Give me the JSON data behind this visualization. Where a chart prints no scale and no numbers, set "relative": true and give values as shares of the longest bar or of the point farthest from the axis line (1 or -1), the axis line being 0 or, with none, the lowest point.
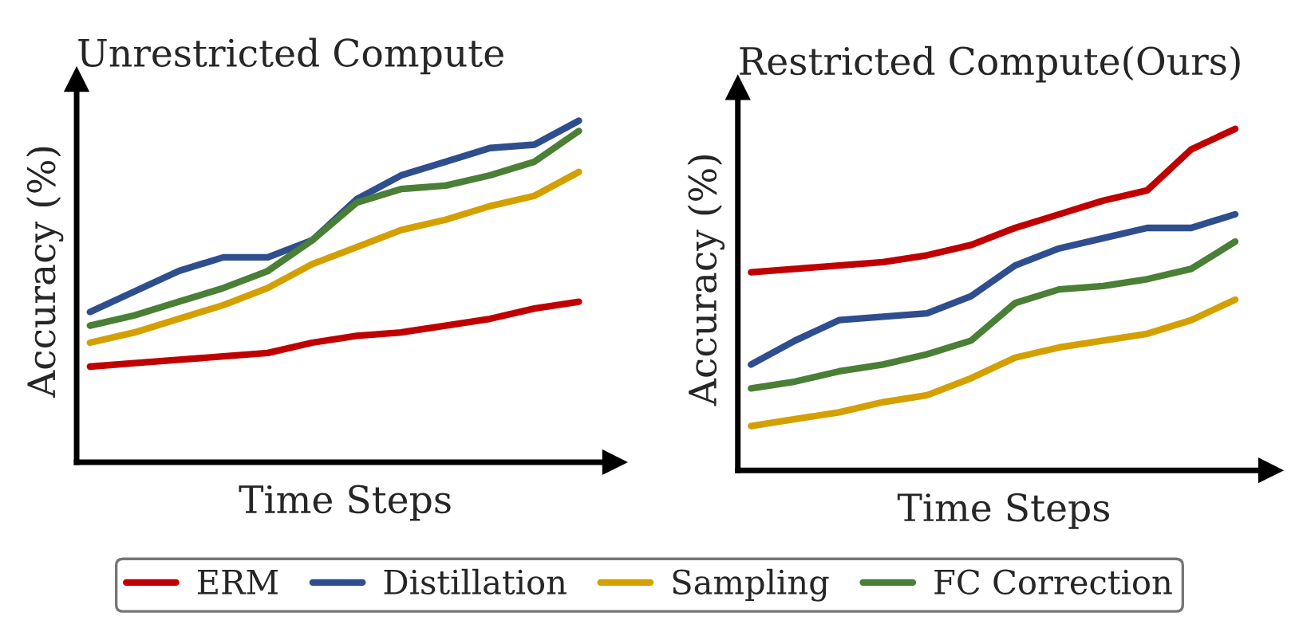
{
  "chart_data": [
    {
      "type": "line",
      "title": "Unrestricted Compute",
      "xlabel": "Time Steps",
      "ylabel": "Accuracy (%)",
      "relative": true,
      "tick_labels": false,
      "grid": false,
      "legend": "bottom",
      "marker": "none",
      "line_style": "solid",
      "categories": [
        null,
        null,
        null,
        null,
        null,
        null,
        null,
        null,
        null,
        null,
        null,
        null
      ],
      "series": [
        {
          "name": "ERM",
          "color": "#c00000",
          "values": [
            0.28,
            0.29,
            0.3,
            0.31,
            0.32,
            0.35,
            0.37,
            0.38,
            0.4,
            0.42,
            0.45,
            0.47
          ]
        },
        {
          "name": "Distillation",
          "color": "#2e4e8e",
          "values": [
            0.44,
            0.5,
            0.56,
            0.6,
            0.6,
            0.65,
            0.77,
            0.84,
            0.88,
            0.92,
            0.93,
            1.0
          ]
        },
        {
          "name": "Sampling",
          "color": "#d4a000",
          "values": [
            0.35,
            0.38,
            0.42,
            0.46,
            0.51,
            0.58,
            0.63,
            0.68,
            0.71,
            0.75,
            0.78,
            0.85
          ]
        },
        {
          "name": "FC Correction",
          "color": "#4a7f36",
          "values": [
            0.4,
            0.43,
            0.47,
            0.51,
            0.56,
            0.65,
            0.76,
            0.8,
            0.81,
            0.84,
            0.88,
            0.97
          ]
        }
      ]
    },
    {
      "type": "line",
      "title": "Restricted Compute(Ours)",
      "xlabel": "Time Steps",
      "ylabel": "Accuracy (%)",
      "relative": true,
      "tick_labels": false,
      "grid": false,
      "marker": "none",
      "line_style": "solid",
      "categories": [
        null,
        null,
        null,
        null,
        null,
        null,
        null,
        null,
        null,
        null,
        null,
        null
      ],
      "series": [
        {
          "color": "#c00000",
          "values": [
            0.58,
            0.59,
            0.6,
            0.61,
            0.63,
            0.66,
            0.71,
            0.75,
            0.79,
            0.82,
            0.94,
            1.0
          ]
        },
        {
          "color": "#2e4e8e",
          "values": [
            0.31,
            0.38,
            0.44,
            0.45,
            0.46,
            0.51,
            0.6,
            0.65,
            0.68,
            0.71,
            0.71,
            0.75
          ]
        },
        {
          "color": "#d4a000",
          "values": [
            0.13,
            0.15,
            0.17,
            0.2,
            0.22,
            0.27,
            0.33,
            0.36,
            0.38,
            0.4,
            0.44,
            0.5
          ]
        },
        {
          "color": "#4a7f36",
          "values": [
            0.24,
            0.26,
            0.29,
            0.31,
            0.34,
            0.38,
            0.49,
            0.53,
            0.54,
            0.56,
            0.59,
            0.67
          ]
        }
      ]
    }
  ]
}
